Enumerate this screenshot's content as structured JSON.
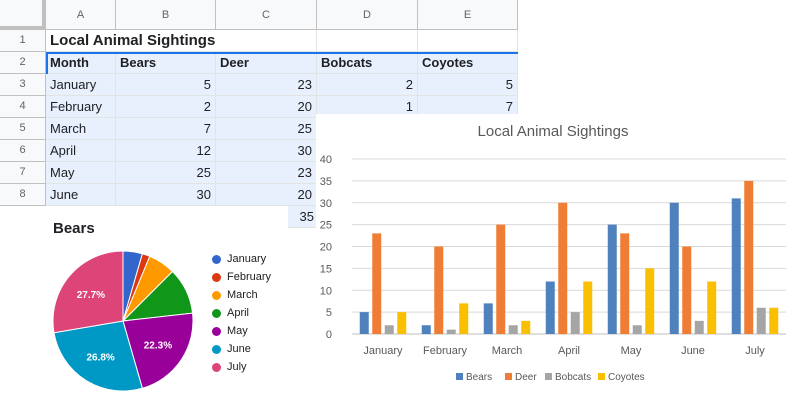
{
  "sheet": {
    "columns": [
      "A",
      "B",
      "C",
      "D",
      "E"
    ],
    "rows": [
      "1",
      "2",
      "3",
      "4",
      "5",
      "6",
      "7",
      "8"
    ],
    "title": "Local Animal Sightings",
    "headers": [
      "Month",
      "Bears",
      "Deer",
      "Bobcats",
      "Coyotes"
    ],
    "data": [
      [
        "January",
        "5",
        "23",
        "2",
        "5"
      ],
      [
        "February",
        "2",
        "20",
        "1",
        "7"
      ],
      [
        "March",
        "7",
        "25",
        "",
        ""
      ],
      [
        "April",
        "12",
        "30",
        "",
        ""
      ],
      [
        "May",
        "25",
        "23",
        "",
        ""
      ],
      [
        "June",
        "30",
        "20",
        "",
        ""
      ]
    ],
    "overflow_value": "35"
  },
  "colors": {
    "bears": "#4f81bd",
    "deer": "#ef7d35",
    "bobcats": "#a5a5a5",
    "coyotes": "#fbbf02",
    "selection": "#1a73e8"
  },
  "chart_data": [
    {
      "type": "bar",
      "title": "Local Animal Sightings",
      "categories": [
        "January",
        "February",
        "March",
        "April",
        "May",
        "June",
        "July"
      ],
      "series": [
        {
          "name": "Bears",
          "values": [
            5,
            2,
            7,
            12,
            25,
            30,
            31
          ]
        },
        {
          "name": "Deer",
          "values": [
            23,
            20,
            25,
            30,
            23,
            20,
            35
          ]
        },
        {
          "name": "Bobcats",
          "values": [
            2,
            1,
            2,
            5,
            2,
            3,
            6
          ]
        },
        {
          "name": "Coyotes",
          "values": [
            5,
            7,
            3,
            12,
            15,
            12,
            6
          ]
        }
      ],
      "yticks": [
        "0",
        "5",
        "10",
        "15",
        "20",
        "25",
        "30",
        "35",
        "40"
      ],
      "ylim": [
        0,
        40
      ],
      "grid": true,
      "legend": "bottom"
    },
    {
      "type": "pie",
      "title": "Bears",
      "labels": [
        "January",
        "February",
        "March",
        "April",
        "May",
        "June",
        "July"
      ],
      "values": [
        5,
        2,
        7,
        12,
        25,
        30,
        31
      ],
      "slice_labels": [
        "",
        "",
        "",
        "",
        "22.3%",
        "26.8%",
        "27.7%"
      ],
      "colors": [
        "#3366cc",
        "#dc3912",
        "#ff9900",
        "#109618",
        "#990099",
        "#0099c6",
        "#dd4477"
      ],
      "legend": "right"
    }
  ]
}
